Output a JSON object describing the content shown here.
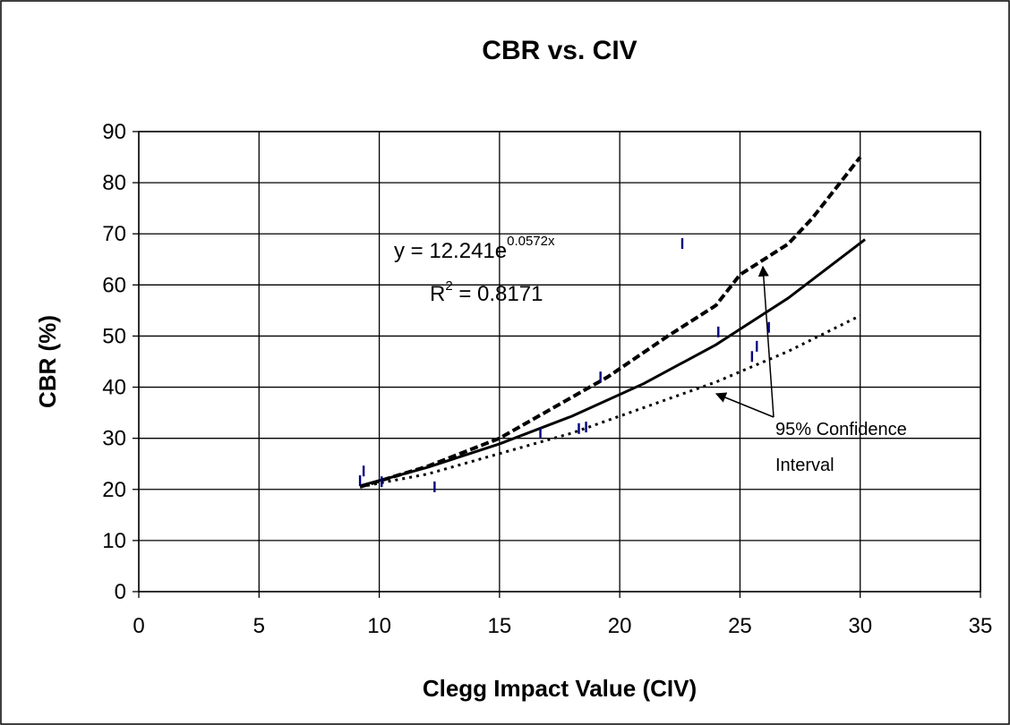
{
  "chart_data": {
    "type": "scatter",
    "title": "CBR vs. CIV",
    "x_label": "Clegg Impact Value (CIV)",
    "y_label": "CBR (%)",
    "xlim": [
      0,
      35
    ],
    "xticks": [
      0,
      5,
      10,
      15,
      20,
      25,
      30,
      35
    ],
    "ylim": [
      0,
      90
    ],
    "yticks": [
      0,
      10,
      20,
      30,
      40,
      50,
      60,
      70,
      80,
      90
    ],
    "grid": true,
    "points": {
      "color": "#000080",
      "x": [
        9.2,
        9.35,
        10.1,
        12.3,
        16.7,
        18.3,
        18.6,
        19.2,
        22.6,
        24.1,
        25.5,
        25.7,
        26.2
      ],
      "values": [
        21.7,
        23.6,
        21.5,
        20.5,
        31,
        31.9,
        32.2,
        42,
        68.1,
        50.8,
        46,
        48,
        51.7
      ]
    },
    "trendline": {
      "color": "#000000",
      "x": [
        9.2,
        12,
        15,
        18,
        21,
        24,
        27,
        30.2
      ],
      "values": [
        20.7,
        24.3,
        28.9,
        34.3,
        40.7,
        48.3,
        57.4,
        68.9
      ]
    },
    "upper_ci": {
      "color": "#000000",
      "x": [
        9.2,
        12,
        15,
        18,
        19.5,
        22,
        24,
        25,
        26,
        27,
        28,
        30
      ],
      "values": [
        20.5,
        24.5,
        30,
        38,
        42,
        50,
        56,
        62,
        65,
        68,
        73,
        85
      ]
    },
    "lower_ci": {
      "color": "#000000",
      "x": [
        9.2,
        12,
        15,
        18,
        21,
        24,
        27,
        30
      ],
      "values": [
        20.5,
        23,
        27,
        31,
        36,
        41,
        47,
        54
      ]
    },
    "equation": {
      "base": "y = 12.241e",
      "exponent": "0.0572x"
    },
    "r_squared": {
      "base": "R",
      "exponent": "2",
      "rest": " = 0.8171"
    },
    "annotation": [
      "95% Confidence",
      "Interval"
    ]
  }
}
